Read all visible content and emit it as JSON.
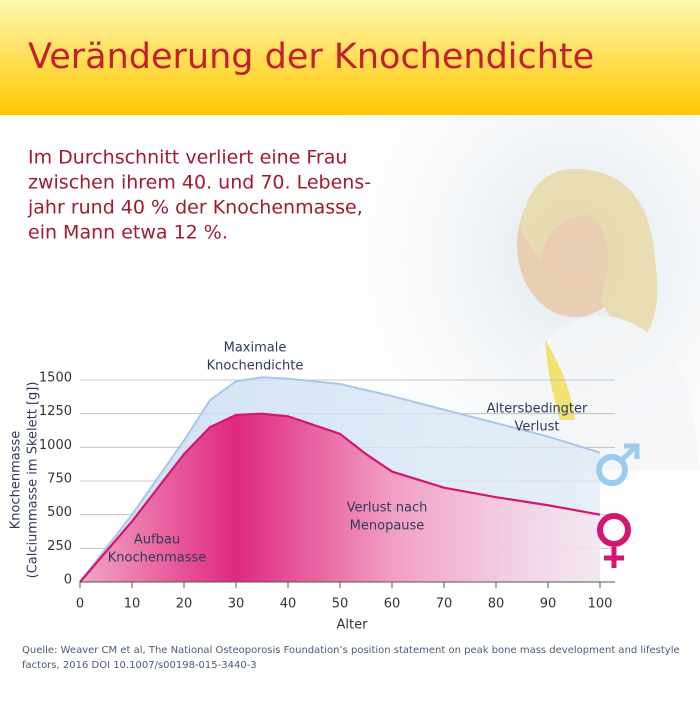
{
  "chart_data": {
    "type": "area",
    "title": "Veränderung der Knochendichte",
    "subtitle": [
      "Im Durchschnitt verliert eine Frau",
      "zwischen ihrem 40. und 70. Lebens-",
      "jahr rund 40 % der Knochenmasse,",
      "ein Mann etwa 12 %."
    ],
    "x_label": "Alter",
    "y_label": [
      "Knochenmasse",
      "(Calciummasse im Skelett [g])"
    ],
    "xlim": [
      0,
      100
    ],
    "xticks": [
      0,
      10,
      20,
      30,
      40,
      50,
      60,
      70,
      80,
      90,
      100
    ],
    "ylim": [
      0,
      1500
    ],
    "yticks": [
      0,
      250,
      500,
      750,
      1000,
      1250,
      1500
    ],
    "grid": true,
    "series": [
      {
        "color": "#a9c8e8",
        "x": [
          0,
          10,
          20,
          25,
          30,
          35,
          40,
          50,
          60,
          70,
          80,
          90,
          100
        ],
        "values": [
          0,
          500,
          1050,
          1350,
          1490,
          1520,
          1510,
          1470,
          1380,
          1280,
          1180,
          1080,
          960
        ]
      },
      {
        "color": "#d4166f",
        "x": [
          0,
          10,
          20,
          25,
          30,
          35,
          40,
          50,
          55,
          60,
          70,
          80,
          90,
          100
        ],
        "values": [
          0,
          450,
          950,
          1150,
          1240,
          1250,
          1230,
          1100,
          950,
          820,
          700,
          630,
          570,
          500
        ]
      }
    ],
    "annotations": [
      {
        "lines": [
          "Maximale",
          "Knochendichte"
        ]
      },
      {
        "lines": [
          "Altersbedingter",
          "Verlust"
        ]
      },
      {
        "lines": [
          "Verlust nach",
          "Menopause"
        ]
      },
      {
        "lines": [
          "Aufbau",
          "Knochenmasse"
        ]
      }
    ],
    "source": [
      "Quelle: Weaver CM et al, The National Osteoporosis Foundation’s position statement on peak bone mass development and lifestyle",
      "factors, 2016 DOI 10.1007/s00198-015-3440-3"
    ]
  }
}
